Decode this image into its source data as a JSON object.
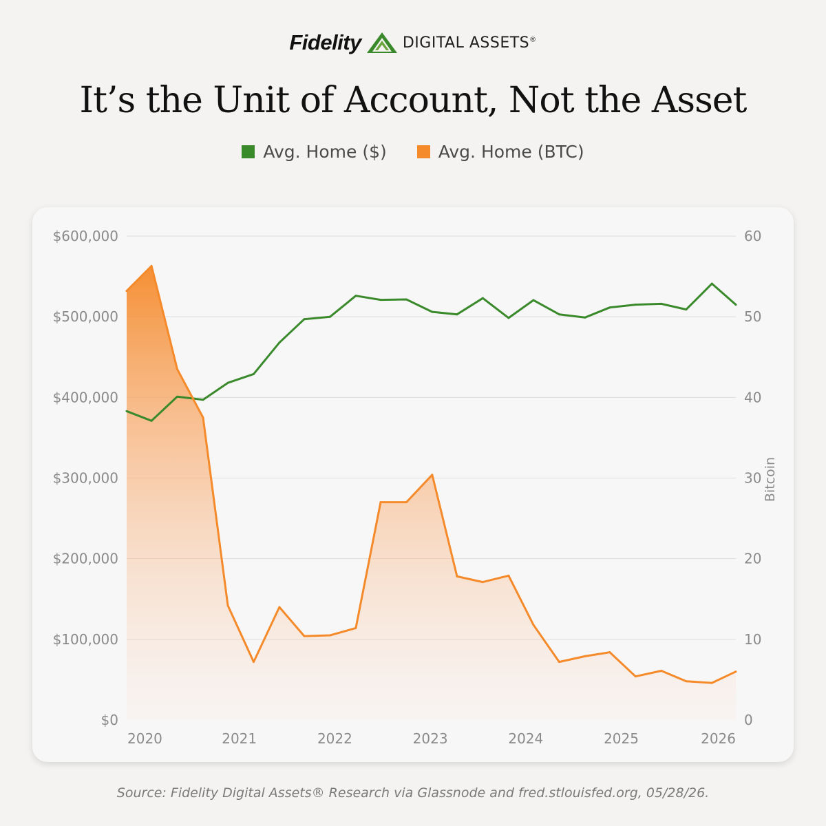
{
  "header": {
    "brand_name": "Fidelity",
    "brand_sub": "DIGITAL ASSETS",
    "brand_reg": "®"
  },
  "legend": {
    "usd_label": "Avg. Home ($)",
    "btc_label": "Avg. Home (BTC)"
  },
  "source": "Source: Fidelity Digital Assets® Research via Glassnode and fred.stlouisfed.org, 05/28/26.",
  "colors": {
    "usd": "#3a8a2c",
    "btc": "#f58a2a",
    "background": "#f4f3f1",
    "card": "#f8f7f8",
    "grid": "#dddcdc",
    "tick": "#8a8a8a"
  },
  "chart_data": {
    "type": "line",
    "title": "It’s the Unit of Account, Not the Asset",
    "xlabel": "",
    "ylabel_left": "",
    "ylabel_right": "Bitcoin",
    "x_ticks": [
      "2020",
      "2021",
      "2022",
      "2023",
      "2024",
      "2025",
      "2026"
    ],
    "x_tick_positions": [
      2020.0,
      2021.0,
      2022.0,
      2023.0,
      2024.0,
      2025.0,
      2026.0
    ],
    "xlim": [
      2019.82,
      2026.2
    ],
    "y_left_ticks": [
      "$0",
      "$100,000",
      "$200,000",
      "$300,000",
      "$400,000",
      "$500,000",
      "$600,000"
    ],
    "y_left_lim": [
      0,
      600000
    ],
    "y_right_ticks": [
      "0",
      "10",
      "20",
      "30",
      "40",
      "50",
      "60"
    ],
    "y_right_lim": [
      0,
      60
    ],
    "grid": true,
    "legend_position": "top-center",
    "series": [
      {
        "name": "Avg. Home ($)",
        "axis": "left",
        "area_fill": false,
        "x": [
          2019.82,
          2020.08,
          2020.35,
          2020.62,
          2020.88,
          2021.15,
          2021.42,
          2021.68,
          2021.95,
          2022.22,
          2022.48,
          2022.75,
          2023.02,
          2023.28,
          2023.55,
          2023.82,
          2024.08,
          2024.35,
          2024.62,
          2024.88,
          2025.15,
          2025.42,
          2025.68,
          2025.95,
          2026.2
        ],
        "values": [
          383000,
          371000,
          401000,
          397000,
          418000,
          429000,
          468000,
          497000,
          500000,
          526000,
          521000,
          521500,
          506000,
          503000,
          523000,
          498500,
          520500,
          503000,
          499000,
          511500,
          515000,
          516000,
          509000,
          541000,
          515000
        ]
      },
      {
        "name": "Avg. Home (BTC)",
        "axis": "right",
        "area_fill": true,
        "x": [
          2019.82,
          2020.08,
          2020.35,
          2020.62,
          2020.88,
          2021.15,
          2021.42,
          2021.68,
          2021.95,
          2022.22,
          2022.48,
          2022.75,
          2023.02,
          2023.28,
          2023.55,
          2023.82,
          2024.08,
          2024.35,
          2024.62,
          2024.88,
          2025.15,
          2025.42,
          2025.68,
          2025.95,
          2026.2
        ],
        "values": [
          53.2,
          56.3,
          43.5,
          37.5,
          14.2,
          7.2,
          14.0,
          10.4,
          10.5,
          11.4,
          27.0,
          27.0,
          30.4,
          17.8,
          17.1,
          17.9,
          11.8,
          7.2,
          7.9,
          8.4,
          5.4,
          6.1,
          4.8,
          4.6,
          6.0
        ]
      }
    ]
  }
}
